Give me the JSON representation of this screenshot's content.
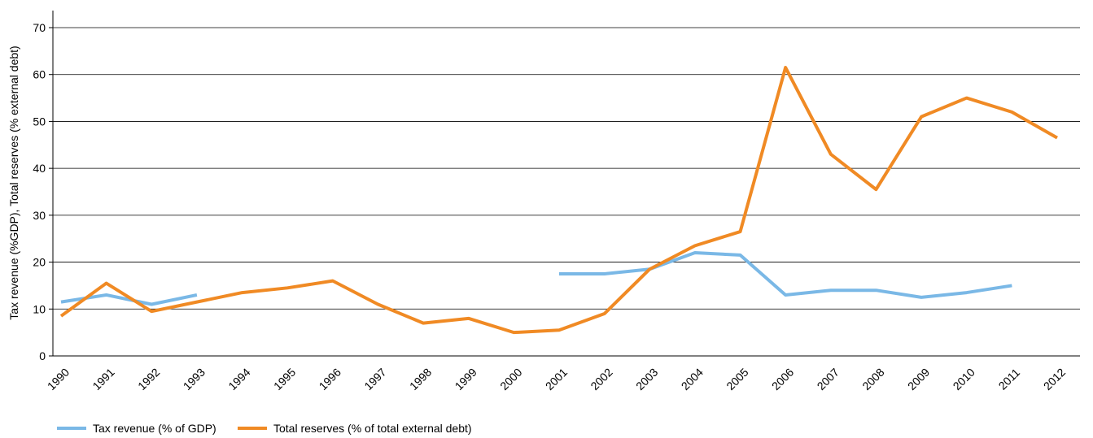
{
  "chart_data": {
    "type": "line",
    "title": "",
    "xlabel": "",
    "ylabel": "Tax revenue (%GDP), Total reserves (% external debt)",
    "ylim": [
      0,
      70
    ],
    "yticks": [
      0,
      10,
      20,
      30,
      40,
      50,
      60,
      70
    ],
    "grid": "horizontal",
    "legend_position": "bottom-left",
    "categories": [
      "1990",
      "1991",
      "1992",
      "1993",
      "1994",
      "1995",
      "1996",
      "1997",
      "1998",
      "1999",
      "2000",
      "2001",
      "2002",
      "2003",
      "2004",
      "2005",
      "2006",
      "2007",
      "2008",
      "2009",
      "2010",
      "2011",
      "2012"
    ],
    "series": [
      {
        "name": "Tax revenue (% of GDP)",
        "color": "#7ab8e6",
        "values": [
          11.5,
          13,
          11,
          13,
          null,
          null,
          null,
          null,
          null,
          null,
          null,
          17.5,
          17.5,
          18.5,
          22,
          21.5,
          13,
          14,
          14,
          12.5,
          13.5,
          15,
          null
        ]
      },
      {
        "name": "Total reserves (% of total external debt)",
        "color": "#f08a24",
        "values": [
          8.5,
          15.5,
          9.5,
          11.5,
          13.5,
          14.5,
          16,
          11,
          7,
          8,
          5,
          5.5,
          9,
          18.5,
          23.5,
          26.5,
          61.5,
          43,
          35.5,
          51,
          55,
          52,
          46.5
        ]
      }
    ]
  }
}
